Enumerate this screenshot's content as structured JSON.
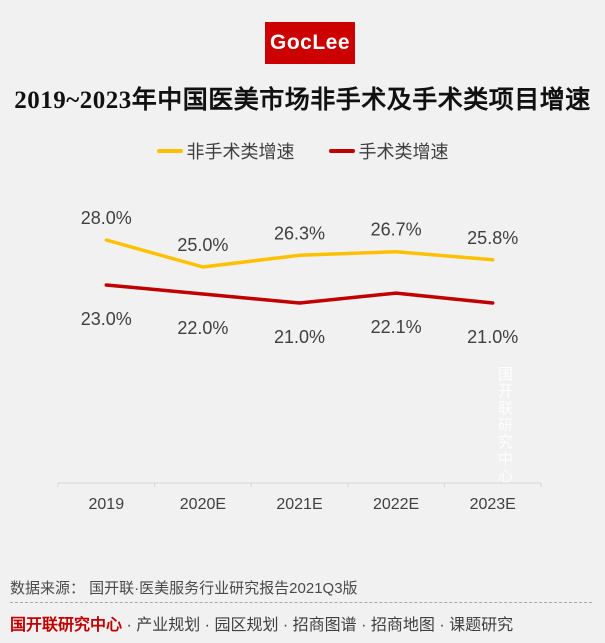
{
  "page": {
    "background_color": "#f1f1f1"
  },
  "logo": {
    "text": "GocLee",
    "background_color": "#cc0000",
    "text_color": "#ffffff"
  },
  "title": "2019~2023年中国医美市场非手术及手术类项目增速",
  "legend": {
    "items": [
      {
        "label": "非手术类增速",
        "color": "#FFC000"
      },
      {
        "label": "手术类增速",
        "color": "#C00000"
      }
    ]
  },
  "chart_data": {
    "type": "line",
    "title": "2019~2023年中国医美市场非手术及手术类项目增速",
    "categories": [
      "2019",
      "2020E",
      "2021E",
      "2022E",
      "2023E"
    ],
    "series": [
      {
        "name": "非手术类增速",
        "color": "#FFC000",
        "values": [
          28.0,
          25.0,
          26.3,
          26.7,
          25.8
        ],
        "labels": [
          "28.0%",
          "25.0%",
          "26.3%",
          "26.7%",
          "25.8%"
        ],
        "label_position": "above"
      },
      {
        "name": "手术类增速",
        "color": "#C00000",
        "values": [
          23.0,
          22.0,
          21.0,
          22.1,
          21.0
        ],
        "labels": [
          "23.0%",
          "22.0%",
          "21.0%",
          "22.1%",
          "21.0%"
        ],
        "label_position": "below"
      }
    ],
    "xlabel": "",
    "ylabel": "",
    "value_unit": "%",
    "grid": false,
    "legend_position": "top",
    "axis_color": "#d6d6d6",
    "label_color": "#404040"
  },
  "watermark": "国开联研究中心",
  "source": "数据来源： 国开联·医美服务行业研究报告2021Q3版",
  "footer": {
    "brand": "国开联研究中心",
    "tagline": " · 产业规划 · 园区规划 · 招商图谱 · 招商地图 · 课题研究"
  }
}
